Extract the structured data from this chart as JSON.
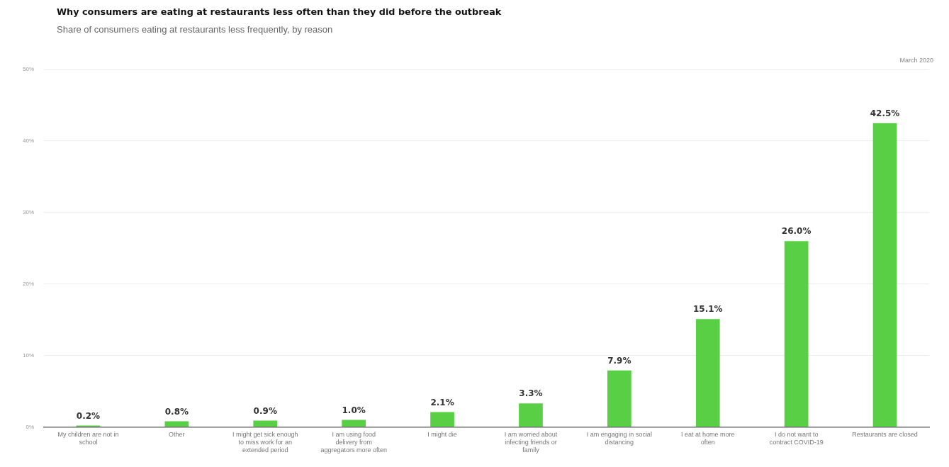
{
  "chart_data": {
    "type": "bar",
    "title": "Why consumers are eating at restaurants less often than they did before the outbreak",
    "subtitle": "Share of consumers eating at restaurants less frequently, by reason",
    "annotations": [
      "March 2020"
    ],
    "categories": [
      "My children are not in school",
      "Other",
      "I might get sick enough to miss work for an extended period",
      "I am using food delivery from aggregators more often",
      "I might die",
      "I am worried about infecting friends or family",
      "I am engaging in social distancing",
      "I eat at home more often",
      "I do not want to contract COVID-19",
      "Restaurants are closed"
    ],
    "values": [
      0.2,
      0.8,
      0.9,
      1.0,
      2.1,
      3.3,
      7.9,
      15.1,
      26.0,
      42.5
    ],
    "value_labels": [
      "0.2%",
      "0.8%",
      "0.9%",
      "1.0%",
      "2.1%",
      "3.3%",
      "7.9%",
      "15.1%",
      "26.0%",
      "42.5%"
    ],
    "color": "#58cf45",
    "ylim": [
      0,
      50
    ],
    "yticks": [
      {
        "value": 0,
        "label": "0%"
      },
      {
        "value": 10,
        "label": "10%"
      },
      {
        "value": 20,
        "label": "20%"
      },
      {
        "value": 30,
        "label": "30%"
      },
      {
        "value": 40,
        "label": "40%"
      },
      {
        "value": 50,
        "label": "50%"
      }
    ],
    "grid": "y"
  }
}
